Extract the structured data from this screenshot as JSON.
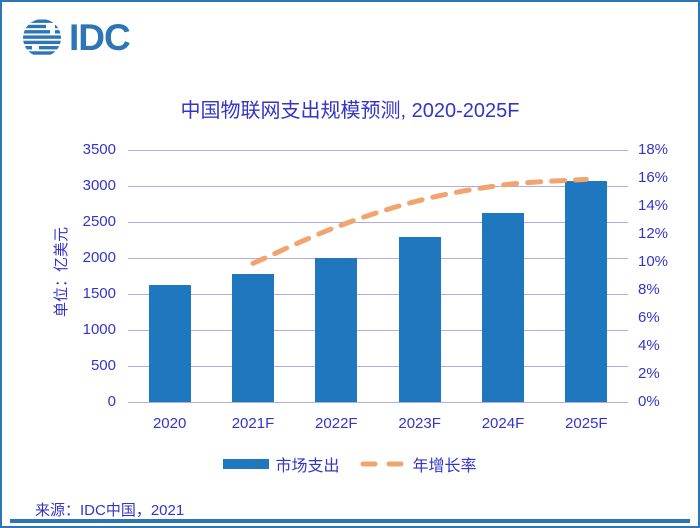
{
  "brand": {
    "logo_text": "IDC"
  },
  "source_note": "来源：IDC中国，2021",
  "colors": {
    "brand_blue": "#2E75B6",
    "bar_blue": "#1F78BE",
    "line_orange": "#F2A46E",
    "gridline": "#B1ADE4",
    "chart_text": "#3434C8"
  },
  "chart_data": {
    "type": "bar",
    "subtype": "combo-bar-line",
    "title": "中国物联网支出规模预测, 2020-2025F",
    "categories": [
      "2020",
      "2021F",
      "2022F",
      "2023F",
      "2024F",
      "2025F"
    ],
    "series": [
      {
        "name": "市场支出",
        "type": "bar",
        "axis": "left",
        "color": "#1F78BE",
        "values": [
          1630,
          1780,
          2000,
          2290,
          2630,
          3070
        ]
      },
      {
        "name": "年增长率",
        "type": "line",
        "line_style": "dashed",
        "axis": "right",
        "color": "#F2A46E",
        "values": [
          null,
          9.9,
          12.5,
          14.4,
          15.5,
          15.9
        ]
      }
    ],
    "left_axis": {
      "title": "单位：亿美元",
      "min": 0,
      "max": 3500,
      "tick_step": 500,
      "tick_labels": [
        "0",
        "500",
        "1000",
        "1500",
        "2000",
        "2500",
        "3000",
        "3500"
      ]
    },
    "right_axis": {
      "min": 0,
      "max": 18,
      "tick_step": 2,
      "tick_labels": [
        "0%",
        "2%",
        "4%",
        "6%",
        "8%",
        "10%",
        "12%",
        "14%",
        "16%",
        "18%"
      ]
    },
    "grid": "horizontal",
    "legend_position": "bottom"
  }
}
